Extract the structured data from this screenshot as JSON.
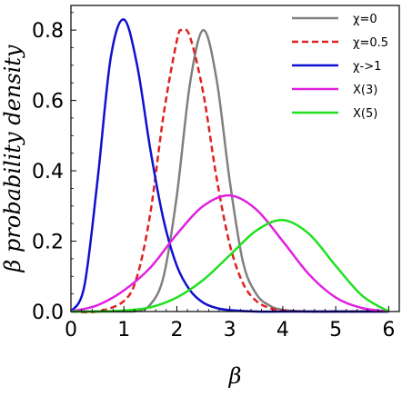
{
  "chart_data": {
    "type": "line",
    "xlabel": "β",
    "ylabel": "β probability density",
    "xlim": [
      0,
      6.2
    ],
    "ylim": [
      0,
      0.87
    ],
    "xticks": [
      0,
      1,
      2,
      3,
      4,
      5,
      6
    ],
    "xtick_labels": [
      "0",
      "1",
      "2",
      "3",
      "4",
      "5",
      "6"
    ],
    "yticks": [
      0.0,
      0.2,
      0.4,
      0.6,
      0.8
    ],
    "ytick_labels": [
      "0.0",
      "0.2",
      "0.4",
      "0.6",
      "0.8"
    ],
    "legend_position": "top-right",
    "series": [
      {
        "name": "χ=0",
        "color": "#808080",
        "dash": "solid",
        "x": [
          0.0,
          0.5,
          1.0,
          1.25,
          1.5,
          1.75,
          2.0,
          2.25,
          2.5,
          2.75,
          3.0,
          3.25,
          3.5,
          3.75,
          4.0,
          4.5,
          5.0,
          5.5,
          6.0
        ],
        "y": [
          0.0,
          0.0,
          0.0,
          0.002,
          0.02,
          0.1,
          0.33,
          0.65,
          0.8,
          0.66,
          0.37,
          0.14,
          0.05,
          0.017,
          0.005,
          0.0,
          0.0,
          0.0,
          0.0
        ]
      },
      {
        "name": "χ=0.5",
        "color": "#e02020",
        "dash": "dashed",
        "x": [
          0.0,
          0.5,
          1.0,
          1.25,
          1.5,
          1.75,
          2.0,
          2.1,
          2.25,
          2.5,
          2.75,
          3.0,
          3.25,
          3.5,
          3.75,
          4.0,
          4.5,
          5.0,
          6.0
        ],
        "y": [
          0.0,
          0.0,
          0.03,
          0.1,
          0.28,
          0.56,
          0.77,
          0.8,
          0.78,
          0.62,
          0.38,
          0.19,
          0.08,
          0.03,
          0.01,
          0.003,
          0.0,
          0.0,
          0.0
        ]
      },
      {
        "name": "χ->1",
        "color": "#1010d0",
        "dash": "solid",
        "x": [
          0.0,
          0.25,
          0.5,
          0.75,
          1.0,
          1.25,
          1.5,
          1.75,
          2.0,
          2.25,
          2.5,
          2.75,
          3.0,
          3.5,
          4.0,
          5.0,
          6.0
        ],
        "y": [
          0.0,
          0.07,
          0.37,
          0.72,
          0.83,
          0.7,
          0.46,
          0.26,
          0.13,
          0.06,
          0.025,
          0.01,
          0.004,
          0.0,
          0.0,
          0.0,
          0.0
        ]
      },
      {
        "name": "X(3)",
        "color": "#e020e0",
        "dash": "solid",
        "x": [
          0.0,
          0.5,
          1.0,
          1.5,
          2.0,
          2.5,
          3.0,
          3.5,
          4.0,
          4.5,
          5.0,
          5.5,
          6.0
        ],
        "y": [
          0.0,
          0.018,
          0.06,
          0.125,
          0.22,
          0.3,
          0.33,
          0.29,
          0.2,
          0.105,
          0.04,
          0.01,
          0.0
        ]
      },
      {
        "name": "X(5)",
        "color": "#20e020",
        "dash": "solid",
        "x": [
          0.0,
          0.5,
          1.0,
          1.5,
          2.0,
          2.5,
          3.0,
          3.5,
          4.0,
          4.5,
          5.0,
          5.5,
          6.0
        ],
        "y": [
          0.0,
          0.0,
          0.003,
          0.012,
          0.04,
          0.09,
          0.16,
          0.23,
          0.26,
          0.22,
          0.13,
          0.045,
          0.0
        ]
      }
    ]
  }
}
